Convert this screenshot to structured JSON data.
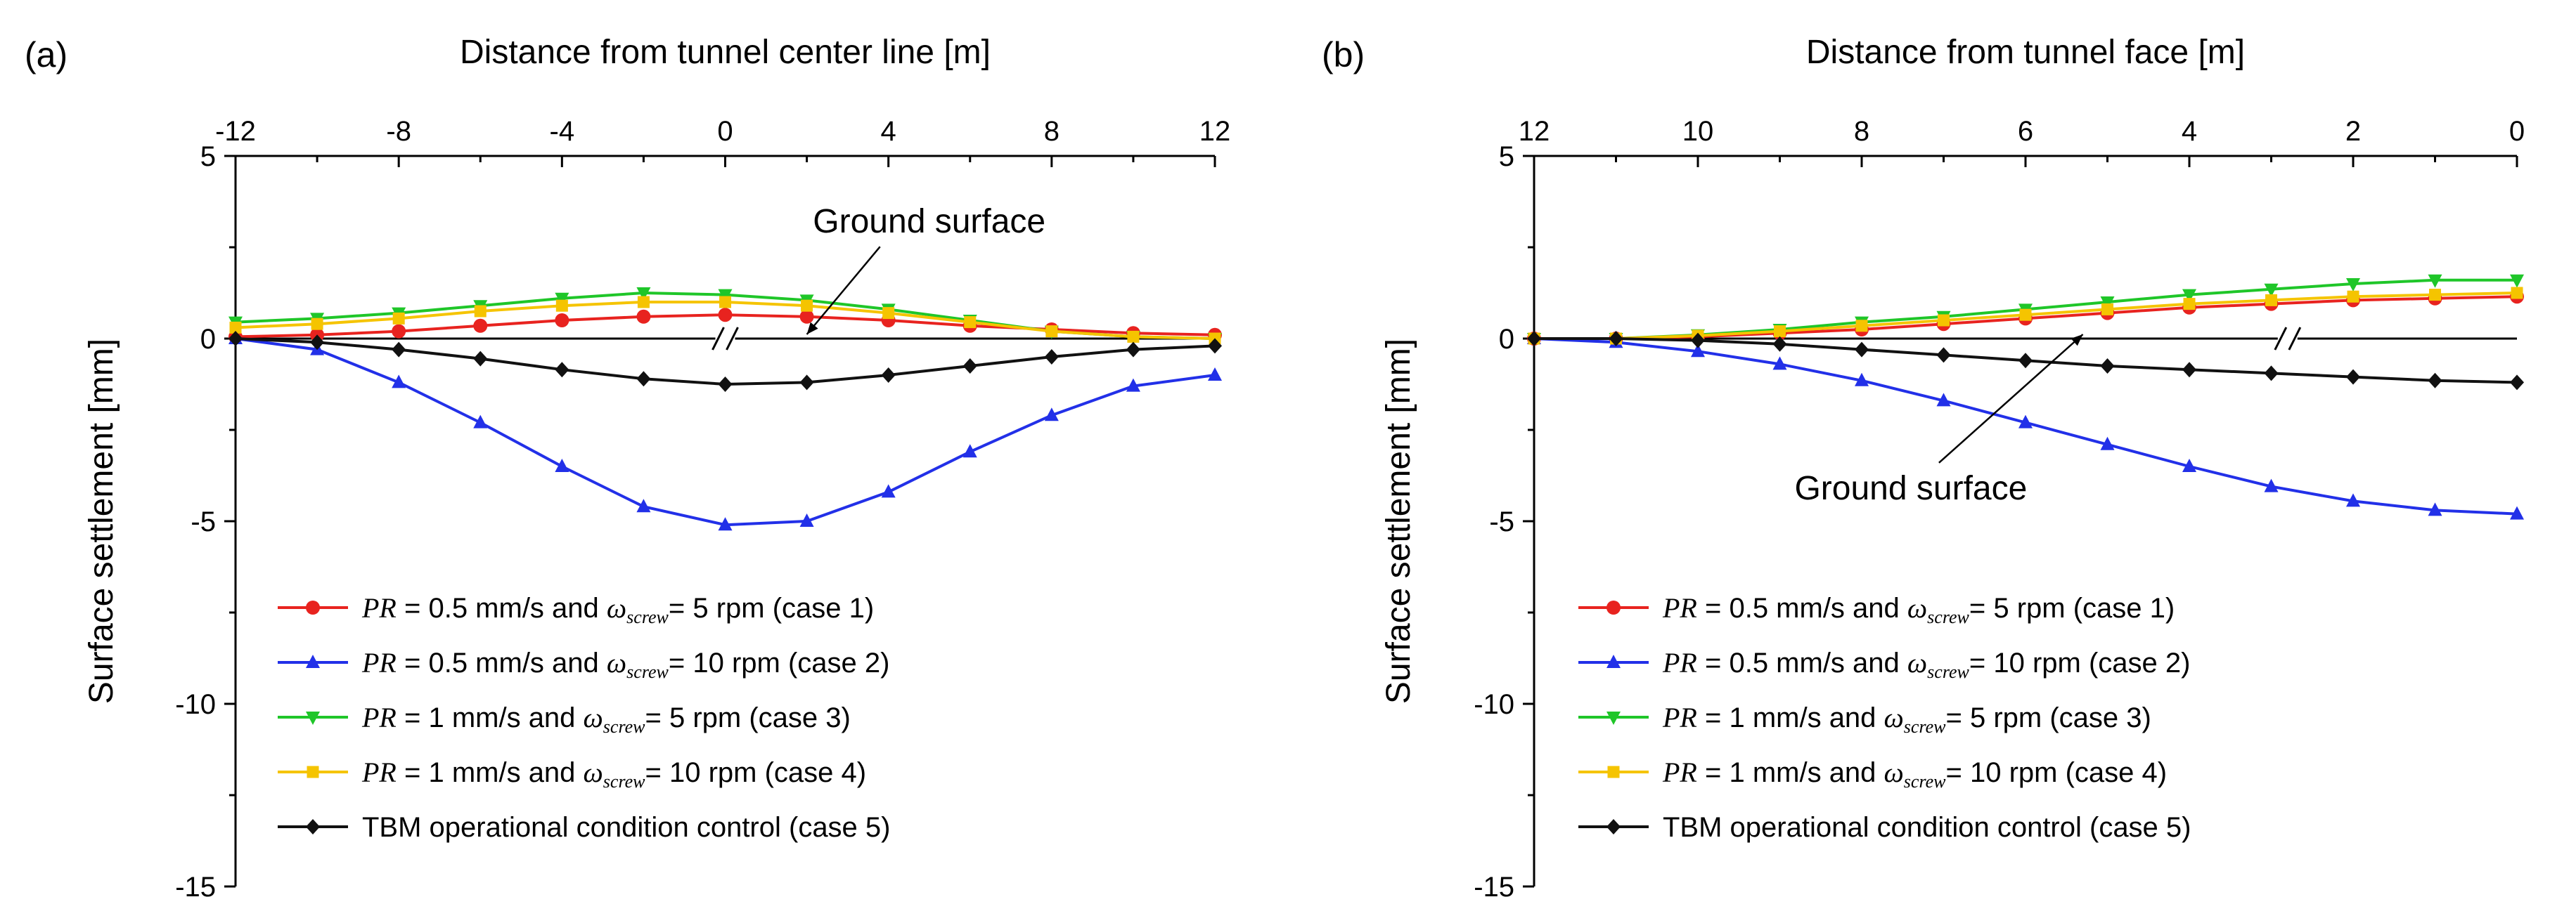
{
  "chart_data": [
    {
      "panel_label": "(a)",
      "type": "line",
      "title": "",
      "xlabel": "Distance from tunnel center line [m]",
      "ylabel": "Surface settlement [mm]",
      "x_axis_position": "top",
      "xlim": [
        -12,
        12
      ],
      "ylim": [
        -15,
        5
      ],
      "xticks": [
        "-12",
        "-8",
        "-4",
        "0",
        "4",
        "8",
        "12"
      ],
      "yticks": [
        "5",
        "0",
        "-5",
        "-10",
        "-15"
      ],
      "x": [
        -12,
        -10,
        -8,
        -6,
        -4,
        -2,
        0,
        2,
        4,
        6,
        8,
        10,
        12
      ],
      "series": [
        {
          "name": "case 1",
          "color": "#e8231f",
          "marker": "circle",
          "values": [
            0.05,
            0.1,
            0.2,
            0.35,
            0.5,
            0.6,
            0.65,
            0.6,
            0.5,
            0.35,
            0.25,
            0.15,
            0.1
          ]
        },
        {
          "name": "case 2",
          "color": "#2230e8",
          "marker": "triangle-up",
          "values": [
            0.0,
            -0.3,
            -1.2,
            -2.3,
            -3.5,
            -4.6,
            -5.1,
            -5.0,
            -4.2,
            -3.1,
            -2.1,
            -1.3,
            -1.0
          ]
        },
        {
          "name": "case 3",
          "color": "#1fc629",
          "marker": "triangle-down",
          "values": [
            0.45,
            0.55,
            0.7,
            0.9,
            1.1,
            1.25,
            1.2,
            1.05,
            0.8,
            0.5,
            0.2,
            0.05,
            0.0
          ]
        },
        {
          "name": "case 4",
          "color": "#f5c400",
          "marker": "square",
          "values": [
            0.3,
            0.4,
            0.55,
            0.75,
            0.9,
            1.0,
            1.0,
            0.9,
            0.7,
            0.45,
            0.2,
            0.05,
            0.0
          ]
        },
        {
          "name": "case 5",
          "color": "#111111",
          "marker": "diamond",
          "values": [
            0.0,
            -0.1,
            -0.3,
            -0.55,
            -0.85,
            -1.1,
            -1.25,
            -1.2,
            -1.0,
            -0.75,
            -0.5,
            -0.3,
            -0.2
          ]
        }
      ],
      "annotation": {
        "text": "Ground surface",
        "arrow_to": [
          2,
          0
        ],
        "text_at": [
          5,
          2.9
        ]
      },
      "break_mark_x": 0
    },
    {
      "panel_label": "(b)",
      "type": "line",
      "title": "",
      "xlabel": "Distance from tunnel face [m]",
      "ylabel": "Surface settlement [mm]",
      "x_axis_position": "top",
      "x_reversed": true,
      "xlim": [
        12,
        0
      ],
      "ylim": [
        -15,
        5
      ],
      "xticks": [
        "12",
        "10",
        "8",
        "6",
        "4",
        "2",
        "0"
      ],
      "yticks": [
        "5",
        "0",
        "-5",
        "-10",
        "-15"
      ],
      "x": [
        12,
        11,
        10,
        9,
        8,
        7,
        6,
        5,
        4,
        3,
        2,
        1,
        0
      ],
      "series": [
        {
          "name": "case 1",
          "color": "#e8231f",
          "marker": "circle",
          "values": [
            0.0,
            0.0,
            0.05,
            0.15,
            0.25,
            0.4,
            0.55,
            0.7,
            0.85,
            0.95,
            1.05,
            1.1,
            1.15
          ]
        },
        {
          "name": "case 2",
          "color": "#2230e8",
          "marker": "triangle-up",
          "values": [
            0.0,
            -0.1,
            -0.35,
            -0.7,
            -1.15,
            -1.7,
            -2.3,
            -2.9,
            -3.5,
            -4.05,
            -4.45,
            -4.7,
            -4.8
          ]
        },
        {
          "name": "case 3",
          "color": "#1fc629",
          "marker": "triangle-down",
          "values": [
            0.0,
            0.0,
            0.1,
            0.25,
            0.45,
            0.6,
            0.8,
            1.0,
            1.2,
            1.35,
            1.5,
            1.6,
            1.6
          ]
        },
        {
          "name": "case 4",
          "color": "#f5c400",
          "marker": "square",
          "values": [
            0.0,
            0.0,
            0.08,
            0.2,
            0.35,
            0.5,
            0.65,
            0.8,
            0.95,
            1.05,
            1.15,
            1.2,
            1.25
          ]
        },
        {
          "name": "case 5",
          "color": "#111111",
          "marker": "diamond",
          "values": [
            0.0,
            0.0,
            -0.05,
            -0.15,
            -0.3,
            -0.45,
            -0.6,
            -0.75,
            -0.85,
            -0.95,
            -1.05,
            -1.15,
            -1.2
          ]
        }
      ],
      "annotation": {
        "text": "Ground surface",
        "arrow_to": [
          5.3,
          0
        ],
        "text_at": [
          7.4,
          -4.4
        ]
      },
      "break_mark_x": 2.8
    }
  ],
  "legend": [
    {
      "case": "case 1",
      "prefix": "PR",
      "text_a": " = 0.5 mm/s and ",
      "omega": "ω",
      "sub": "screw",
      "text_b": "= 5 rpm (case 1)"
    },
    {
      "case": "case 2",
      "prefix": "PR",
      "text_a": " = 0.5 mm/s and ",
      "omega": "ω",
      "sub": "screw",
      "text_b": "= 10 rpm  (case 2)"
    },
    {
      "case": "case 3",
      "prefix": "PR",
      "text_a": " = 1 mm/s and ",
      "omega": "ω",
      "sub": "screw",
      "text_b": "= 5 rpm  (case 3)"
    },
    {
      "case": "case 4",
      "prefix": "PR",
      "text_a": " = 1 mm/s and ",
      "omega": "ω",
      "sub": "screw",
      "text_b": "= 10 rpm  (case 4)"
    },
    {
      "case": "case 5",
      "prefix": "",
      "text_a": "TBM operational condition control (case 5)",
      "omega": "",
      "sub": "",
      "text_b": ""
    }
  ]
}
